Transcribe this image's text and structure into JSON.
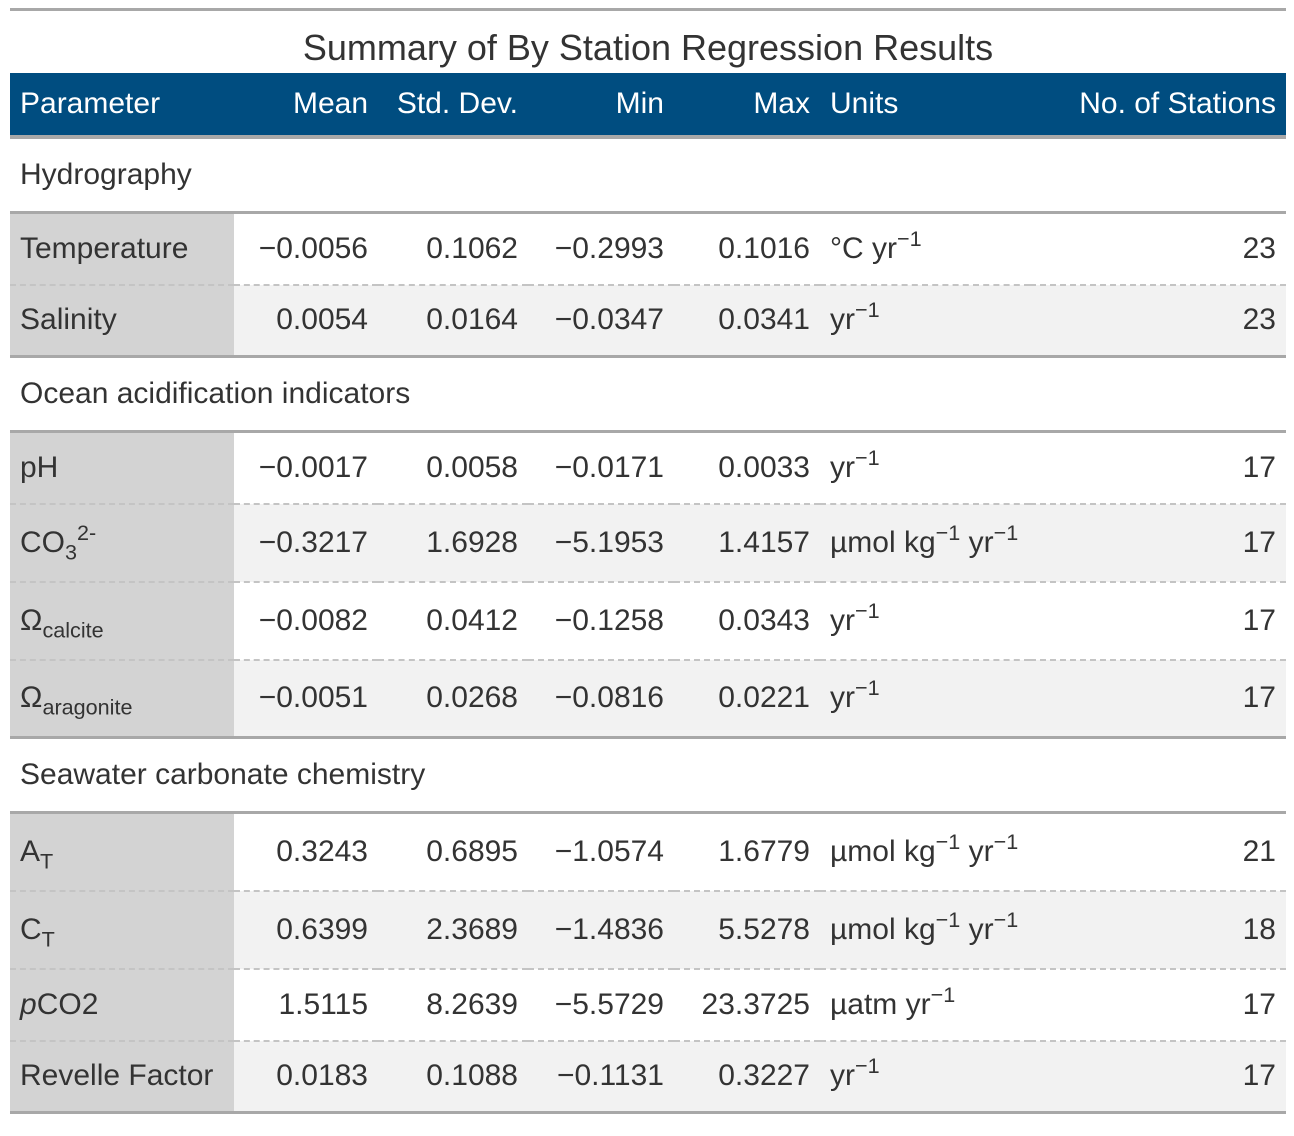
{
  "title": "Summary of By Station Regression Results",
  "columns": {
    "parameter": "Parameter",
    "mean": "Mean",
    "sd": "Std. Dev.",
    "min": "Min",
    "max": "Max",
    "units": "Units",
    "n": "No. of Stations"
  },
  "colors": {
    "header_bg": "#004d80",
    "stub_bg": "#d3d3d3",
    "alt_row_bg": "#f2f2f2",
    "rule": "#a8a8a8"
  },
  "groups": [
    {
      "label": "Hydrography",
      "rows": [
        {
          "param": {
            "base": "Temperature"
          },
          "mean": "−0.0056",
          "sd": "0.1062",
          "min": "−0.2993",
          "max": "0.1016",
          "units": [
            {
              "t": "°C yr"
            },
            {
              "sup": "−1"
            }
          ],
          "n": "23"
        },
        {
          "param": {
            "base": "Salinity"
          },
          "mean": "0.0054",
          "sd": "0.0164",
          "min": "−0.0347",
          "max": "0.0341",
          "units": [
            {
              "t": "yr"
            },
            {
              "sup": "−1"
            }
          ],
          "n": "23"
        }
      ]
    },
    {
      "label": "Ocean acidification indicators",
      "rows": [
        {
          "param": {
            "base": "pH"
          },
          "mean": "−0.0017",
          "sd": "0.0058",
          "min": "−0.0171",
          "max": "0.0033",
          "units": [
            {
              "t": "yr"
            },
            {
              "sup": "−1"
            }
          ],
          "n": "17"
        },
        {
          "param": {
            "base": "CO",
            "sub": "3",
            "sup": "2-"
          },
          "mean": "−0.3217",
          "sd": "1.6928",
          "min": "−5.1953",
          "max": "1.4157",
          "units": [
            {
              "t": "µmol kg"
            },
            {
              "sup": "−1"
            },
            {
              "t": " yr"
            },
            {
              "sup": "−1"
            }
          ],
          "n": "17"
        },
        {
          "param": {
            "base": "Ω",
            "sub": "calcite"
          },
          "mean": "−0.0082",
          "sd": "0.0412",
          "min": "−0.1258",
          "max": "0.0343",
          "units": [
            {
              "t": "yr"
            },
            {
              "sup": "−1"
            }
          ],
          "n": "17"
        },
        {
          "param": {
            "base": "Ω",
            "sub": "aragonite"
          },
          "mean": "−0.0051",
          "sd": "0.0268",
          "min": "−0.0816",
          "max": "0.0221",
          "units": [
            {
              "t": "yr"
            },
            {
              "sup": "−1"
            }
          ],
          "n": "17"
        }
      ]
    },
    {
      "label": "Seawater carbonate chemistry",
      "rows": [
        {
          "param": {
            "base": "A",
            "sub": "T"
          },
          "mean": "0.3243",
          "sd": "0.6895",
          "min": "−1.0574",
          "max": "1.6779",
          "units": [
            {
              "t": "µmol kg"
            },
            {
              "sup": "−1"
            },
            {
              "t": " yr"
            },
            {
              "sup": "−1"
            }
          ],
          "n": "21"
        },
        {
          "param": {
            "base": "C",
            "sub": "T"
          },
          "mean": "0.6399",
          "sd": "2.3689",
          "min": "−1.4836",
          "max": "5.5278",
          "units": [
            {
              "t": "µmol kg"
            },
            {
              "sup": "−1"
            },
            {
              "t": " yr"
            },
            {
              "sup": "−1"
            }
          ],
          "n": "18"
        },
        {
          "param": {
            "italic": "p",
            "base": "CO2"
          },
          "mean": "1.5115",
          "sd": "8.2639",
          "min": "−5.5729",
          "max": "23.3725",
          "units": [
            {
              "t": "µatm yr"
            },
            {
              "sup": "−1"
            }
          ],
          "n": "17"
        },
        {
          "param": {
            "base": "Revelle Factor"
          },
          "mean": "0.0183",
          "sd": "0.1088",
          "min": "−0.1131",
          "max": "0.3227",
          "units": [
            {
              "t": "yr"
            },
            {
              "sup": "−1"
            }
          ],
          "n": "17"
        }
      ]
    }
  ]
}
